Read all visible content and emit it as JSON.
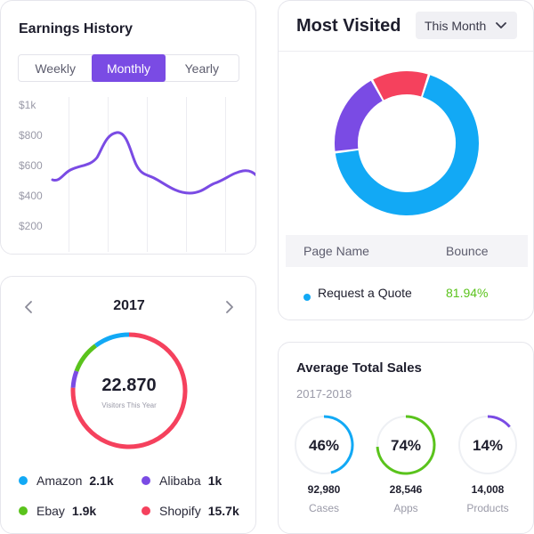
{
  "earnings": {
    "title": "Earnings History",
    "tabs": [
      "Weekly",
      "Monthly",
      "Yearly"
    ],
    "active_tab": "Monthly",
    "y_labels": [
      "$1k",
      "$800",
      "$600",
      "$400",
      "$200"
    ],
    "line_color": "#7a4be4"
  },
  "most_visited": {
    "title": "Most Visited",
    "period": "This Month",
    "donut": [
      {
        "name": "blue",
        "value": 68,
        "color": "#12a9f5"
      },
      {
        "name": "purple",
        "value": 19,
        "color": "#7a4be4"
      },
      {
        "name": "red",
        "value": 13,
        "color": "#f5415d"
      }
    ],
    "table": {
      "col_page": "Page Name",
      "col_bounce": "Bounce",
      "rows": [
        {
          "page": "Request a Quote",
          "bounce": "81.94%",
          "color": "#12a9f5"
        }
      ]
    }
  },
  "year_summary": {
    "year": "2017",
    "total": "22.870",
    "total_label": "Visitors This Year",
    "legend": [
      {
        "name": "Amazon",
        "value": "2.1k",
        "color": "#12a9f5"
      },
      {
        "name": "Alibaba",
        "value": "1k",
        "color": "#7a4be4"
      },
      {
        "name": "Ebay",
        "value": "1.9k",
        "color": "#5ac31c"
      },
      {
        "name": "Shopify",
        "value": "15.7k",
        "color": "#f5415d"
      }
    ]
  },
  "sales": {
    "title": "Average Total Sales",
    "period": "2017-2018",
    "items": [
      {
        "percent": "46%",
        "fraction": 0.46,
        "count": "92,980",
        "label": "Cases",
        "color": "#12a9f5"
      },
      {
        "percent": "74%",
        "fraction": 0.74,
        "count": "28,546",
        "label": "Apps",
        "color": "#5ac31c"
      },
      {
        "percent": "14%",
        "fraction": 0.14,
        "count": "14,008",
        "label": "Products",
        "color": "#7a4be4"
      }
    ]
  }
}
